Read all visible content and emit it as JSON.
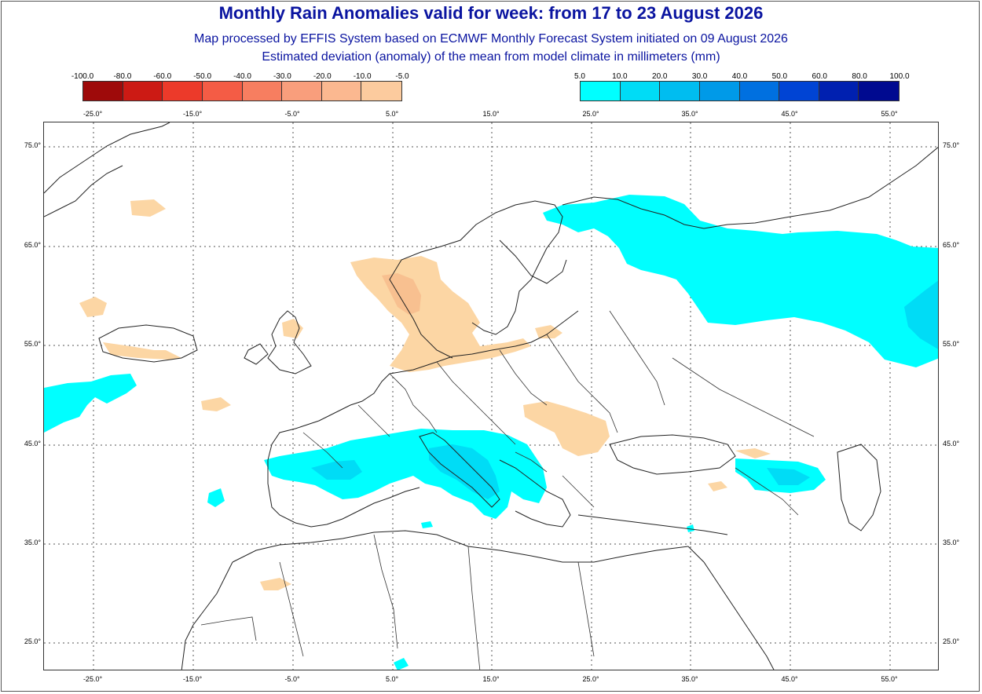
{
  "title": "Monthly Rain Anomalies valid for week: from 17 to 23 August 2026",
  "subtitle_1": "Map processed by EFFIS System based on ECMWF Monthly Forecast System initiated on 09 August 2026",
  "subtitle_2": "Estimated deviation (anomaly) of the mean from model climate in millimeters (mm)",
  "legend_negative": {
    "ticks": [
      "-100.0",
      "-80.0",
      "-60.0",
      "-50.0",
      "-40.0",
      "-30.0",
      "-20.0",
      "-10.0",
      "-5.0"
    ],
    "colors": [
      "#9e0a0a",
      "#cc1a14",
      "#ec3a2a",
      "#f45c45",
      "#f77e60",
      "#f99e7c",
      "#fbb890",
      "#fccb9e"
    ]
  },
  "legend_positive": {
    "ticks": [
      "5.0",
      "10.0",
      "20.0",
      "30.0",
      "40.0",
      "50.0",
      "60.0",
      "80.0",
      "100.0"
    ],
    "colors": [
      "#00ffff",
      "#00dcf6",
      "#00bdf0",
      "#009ae8",
      "#0070e0",
      "#0044d4",
      "#0020b0",
      "#000a90"
    ]
  },
  "longitude_labels": [
    "-25.0°",
    "-15.0°",
    "-5.0°",
    "5.0°",
    "15.0°",
    "25.0°",
    "35.0°",
    "45.0°",
    "55.0°"
  ],
  "latitude_labels": [
    "75.0°",
    "65.0°",
    "55.0°",
    "45.0°",
    "35.0°",
    "25.0°"
  ],
  "colors": {
    "title": "#0a14a0",
    "positive_light": "#00ffff",
    "positive_mid": "#00dcf6",
    "negative_light": "#fcd6a4",
    "negative_mid": "#f8c090",
    "coastline": "#222222"
  }
}
